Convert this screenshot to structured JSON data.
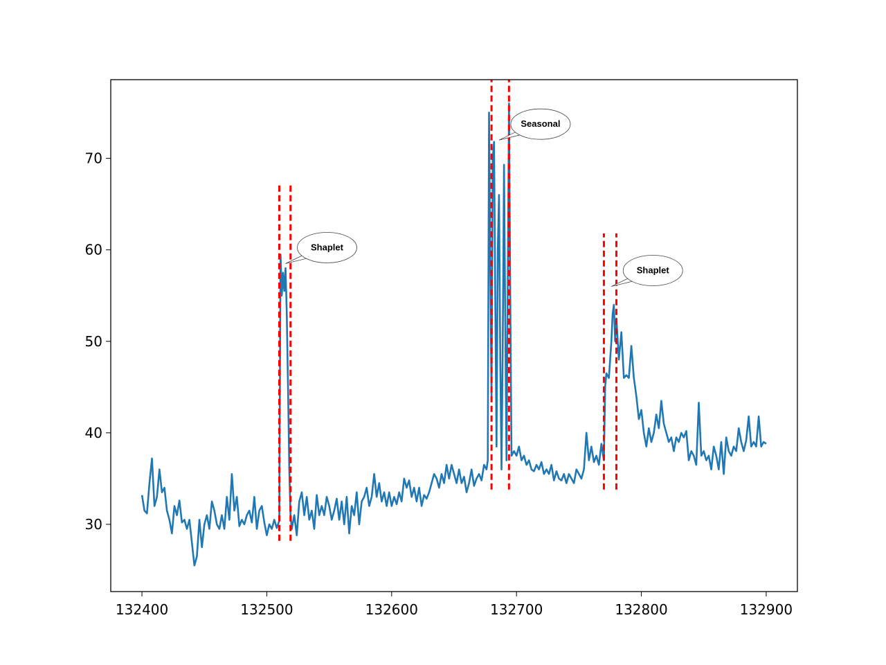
{
  "chart_data": {
    "type": "line",
    "x": [
      132400,
      132402,
      132404,
      132406,
      132408,
      132410,
      132412,
      132414,
      132416,
      132418,
      132420,
      132422,
      132424,
      132426,
      132428,
      132430,
      132432,
      132434,
      132436,
      132438,
      132440,
      132442,
      132444,
      132446,
      132448,
      132450,
      132452,
      132454,
      132456,
      132458,
      132460,
      132462,
      132464,
      132466,
      132468,
      132470,
      132472,
      132474,
      132476,
      132478,
      132480,
      132482,
      132484,
      132486,
      132488,
      132490,
      132492,
      132494,
      132496,
      132498,
      132500,
      132502,
      132504,
      132506,
      132508,
      132510,
      132511,
      132512,
      132513,
      132514,
      132515,
      132516,
      132517,
      132518,
      132519,
      132520,
      132522,
      132524,
      132526,
      132528,
      132530,
      132532,
      132534,
      132536,
      132538,
      132540,
      132542,
      132544,
      132546,
      132548,
      132550,
      132552,
      132554,
      132556,
      132558,
      132560,
      132562,
      132564,
      132566,
      132568,
      132570,
      132572,
      132574,
      132576,
      132578,
      132580,
      132582,
      132584,
      132586,
      132588,
      132590,
      132592,
      132594,
      132596,
      132598,
      132600,
      132602,
      132604,
      132606,
      132608,
      132610,
      132612,
      132614,
      132616,
      132618,
      132620,
      132622,
      132624,
      132626,
      132628,
      132630,
      132632,
      132634,
      132636,
      132638,
      132640,
      132642,
      132644,
      132646,
      132648,
      132650,
      132652,
      132654,
      132656,
      132658,
      132660,
      132662,
      132664,
      132666,
      132668,
      132670,
      132672,
      132674,
      132676,
      132677,
      132678,
      132679,
      132680,
      132681,
      132682,
      132683,
      132684,
      132685,
      132686,
      132687,
      132688,
      132689,
      132690,
      132691,
      132692,
      132693,
      132694,
      132695,
      132696,
      132698,
      132700,
      132702,
      132704,
      132706,
      132708,
      132710,
      132712,
      132714,
      132716,
      132718,
      132720,
      132722,
      132724,
      132726,
      132728,
      132730,
      132732,
      132734,
      132736,
      132738,
      132740,
      132742,
      132744,
      132746,
      132748,
      132750,
      132752,
      132754,
      132756,
      132758,
      132760,
      132762,
      132764,
      132766,
      132768,
      132770,
      132771,
      132772,
      132774,
      132776,
      132777,
      132778,
      132779,
      132780,
      132782,
      132784,
      132786,
      132788,
      132790,
      132792,
      132794,
      132796,
      132798,
      132800,
      132802,
      132804,
      132806,
      132808,
      132810,
      132812,
      132814,
      132816,
      132818,
      132820,
      132822,
      132824,
      132826,
      132828,
      132830,
      132832,
      132834,
      132836,
      132838,
      132840,
      132842,
      132844,
      132846,
      132848,
      132850,
      132852,
      132854,
      132856,
      132858,
      132860,
      132862,
      132864,
      132866,
      132868,
      132870,
      132872,
      132874,
      132876,
      132878,
      132880,
      132882,
      132884,
      132886,
      132888,
      132890,
      132892,
      132894,
      132896,
      132898,
      132900
    ],
    "series": [
      {
        "color": "#1f77b4",
        "values": [
          33.2,
          31.5,
          31.2,
          34.5,
          37.2,
          32,
          33,
          36,
          33.5,
          34,
          31.5,
          30.5,
          29,
          32,
          31,
          32.6,
          30.2,
          30.5,
          29.5,
          30.5,
          28,
          25.5,
          26.5,
          30.5,
          27.5,
          30,
          31,
          29.5,
          32.5,
          31.5,
          30,
          29.5,
          31,
          29.5,
          33,
          30.5,
          35.5,
          31.5,
          33,
          29.8,
          30.5,
          30,
          31,
          31.5,
          30.2,
          33,
          29.5,
          31.5,
          32,
          30.2,
          28.8,
          30,
          29.5,
          30.5,
          29.6,
          30.4,
          59.5,
          55,
          57.5,
          55.5,
          58,
          53,
          45,
          36,
          31,
          29.5,
          31,
          28.8,
          32.5,
          33.5,
          31,
          33,
          30.5,
          31.5,
          29.5,
          33.2,
          31,
          32,
          31,
          33,
          32,
          30.5,
          31.5,
          32.8,
          30.5,
          32.5,
          30,
          33,
          29,
          32,
          31,
          33.5,
          30,
          32.5,
          33,
          34,
          32,
          33,
          35.5,
          33,
          34.5,
          32.5,
          33.5,
          32,
          33.5,
          32,
          33,
          32.2,
          33.5,
          32.5,
          35,
          34,
          34.8,
          33,
          34,
          32.5,
          34,
          32,
          33.2,
          32.8,
          33.5,
          34.5,
          35.5,
          35,
          34,
          35.5,
          34.5,
          36.5,
          35,
          36.5,
          35.5,
          34.5,
          36,
          34.5,
          35.2,
          33.5,
          34.5,
          36,
          34.2,
          35,
          35.5,
          34.8,
          36.5,
          36,
          37,
          75,
          58,
          44,
          70,
          71.8,
          55,
          38.5,
          60,
          66,
          48,
          36,
          50,
          69.3,
          52,
          37,
          56,
          76,
          55,
          37.5,
          38,
          37.5,
          38.5,
          37,
          37.5,
          36.5,
          37,
          36,
          35.8,
          36.5,
          36,
          36.8,
          35.5,
          36,
          35.5,
          36.5,
          34.8,
          35.8,
          35,
          34.8,
          35.5,
          34.5,
          35.5,
          35,
          34.5,
          36,
          35.5,
          35,
          36,
          40,
          37,
          38.5,
          36.8,
          37.5,
          36.5,
          38.8,
          37,
          45,
          46.5,
          46,
          50,
          53,
          54,
          50,
          52.5,
          48,
          51,
          46,
          46.3,
          46,
          49.5,
          46,
          44,
          41.5,
          42.5,
          40,
          38.5,
          40.5,
          39,
          40,
          42,
          40.5,
          43.5,
          41,
          40,
          39,
          39.5,
          38,
          39.5,
          39,
          40,
          39.5,
          40.2,
          37,
          38,
          37.5,
          36.5,
          43.3,
          37.5,
          38,
          37,
          37.5,
          36,
          38.5,
          37.5,
          36,
          39,
          35.5,
          39.5,
          38,
          37.5,
          38.5,
          38,
          40.5,
          39,
          38,
          39.2,
          41.8,
          38.5,
          39,
          38.5,
          41.8,
          38.5,
          39,
          38.8
        ]
      }
    ],
    "vlines": [
      {
        "x": 132510,
        "ymin": 28.2,
        "ymax": 67.4,
        "color": "#ff0000"
      },
      {
        "x": 132519,
        "ymin": 28.2,
        "ymax": 67.4,
        "color": "#ff0000"
      },
      {
        "x": 132680,
        "ymin": 33.8,
        "ymax": 78.6,
        "color": "#ff0000"
      },
      {
        "x": 132694,
        "ymin": 33.8,
        "ymax": 78.6,
        "color": "#ff0000"
      },
      {
        "x": 132770,
        "ymin": 33.8,
        "ymax": 61.8,
        "color": "#ff0000"
      },
      {
        "x": 132780,
        "ymin": 33.8,
        "ymax": 61.8,
        "color": "#ff0000"
      }
    ],
    "annotations": [
      {
        "text": "Shaplet",
        "x": 132515,
        "y": 58.5
      },
      {
        "text": "Seasonal",
        "x": 132686,
        "y": 72
      },
      {
        "text": "Shaplet",
        "x": 132776,
        "y": 56
      }
    ],
    "xlim": [
      132375,
      132925
    ],
    "ylim": [
      22.65,
      78.6
    ],
    "xticks": [
      132400,
      132500,
      132600,
      132700,
      132800,
      132900
    ],
    "yticks": [
      30,
      40,
      50,
      60,
      70
    ]
  }
}
